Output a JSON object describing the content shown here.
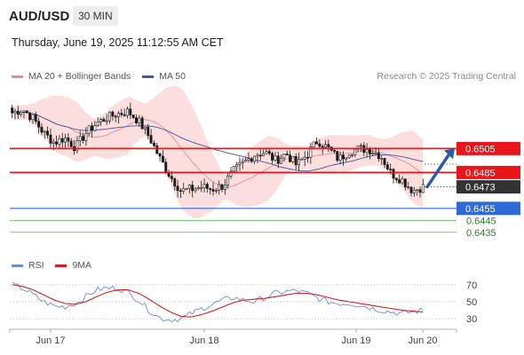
{
  "header": {
    "pair": "AUD/USD",
    "timeframe": "30 MIN"
  },
  "timestamp": "Thursday, June 19, 2025 11:12:55 AM CET",
  "credit": "Research © 2025 Trading Central",
  "legend_price": {
    "ma20": "MA 20 + Bollinger Bands",
    "ma50": "MA 50"
  },
  "legend_rsi": {
    "rsi": "RSI",
    "ma9": "9MA"
  },
  "colors": {
    "resistance": "#e8151b",
    "support": "#2d6bd6",
    "green": "#5cb85c",
    "current": "#333333",
    "bollinger": "#fbd3d3",
    "ma20": "#f08a8a",
    "ma50": "#3a5a9a",
    "rsi": "#6a8fd8",
    "rsi_ma": "#d62020"
  },
  "chart_data": [
    {
      "type": "candlestick",
      "title": "AUD/USD 30 MIN",
      "ylim": [
        0.642,
        0.6555
      ],
      "x_ticks": [
        "Jun 17",
        "Jun 18",
        "Jun 19",
        "Jun 20"
      ],
      "levels": [
        {
          "label": "0.6505",
          "value": 0.6505,
          "kind": "resistance"
        },
        {
          "label": "0.6485",
          "value": 0.6485,
          "kind": "resistance"
        },
        {
          "label": "0.6473",
          "value": 0.6473,
          "kind": "current"
        },
        {
          "label": "0.6455",
          "value": 0.6455,
          "kind": "support"
        },
        {
          "label": "0.6445",
          "value": 0.6445,
          "kind": "support-minor"
        },
        {
          "label": "0.6435",
          "value": 0.6435,
          "kind": "support-minor"
        }
      ],
      "close_path": [
        0.6535,
        0.6538,
        0.653,
        0.6518,
        0.651,
        0.6514,
        0.6506,
        0.6518,
        0.6526,
        0.6531,
        0.6534,
        0.6536,
        0.6528,
        0.6515,
        0.6497,
        0.6482,
        0.647,
        0.6471,
        0.6473,
        0.6471,
        0.6474,
        0.6486,
        0.6493,
        0.65,
        0.6502,
        0.6495,
        0.6501,
        0.6491,
        0.65,
        0.6512,
        0.6505,
        0.6496,
        0.6503,
        0.6505,
        0.6504,
        0.6499,
        0.6484,
        0.6479,
        0.647,
        0.6473
      ],
      "arrow": {
        "from": 0.6473,
        "to": 0.6505,
        "direction": "up"
      }
    },
    {
      "type": "line",
      "title": "RSI",
      "ylim": [
        25,
        75
      ],
      "y_ticks": [
        70,
        50,
        30
      ],
      "series": [
        {
          "name": "RSI",
          "values": [
            70,
            66,
            58,
            50,
            45,
            44,
            48,
            56,
            64,
            66,
            66,
            61,
            52,
            40,
            31,
            29,
            30,
            36,
            42,
            47,
            52,
            55,
            52,
            50,
            55,
            60,
            62,
            63,
            60,
            54,
            50,
            48,
            48,
            46,
            43,
            40,
            38,
            36,
            38,
            40
          ]
        },
        {
          "name": "9MA",
          "values": [
            70,
            68,
            64,
            58,
            52,
            48,
            47,
            50,
            56,
            61,
            64,
            64,
            60,
            53,
            45,
            38,
            33,
            32,
            35,
            39,
            44,
            49,
            52,
            53,
            54,
            56,
            58,
            60,
            60,
            58,
            55,
            52,
            50,
            48,
            46,
            44,
            42,
            40,
            39,
            38
          ]
        }
      ]
    }
  ]
}
